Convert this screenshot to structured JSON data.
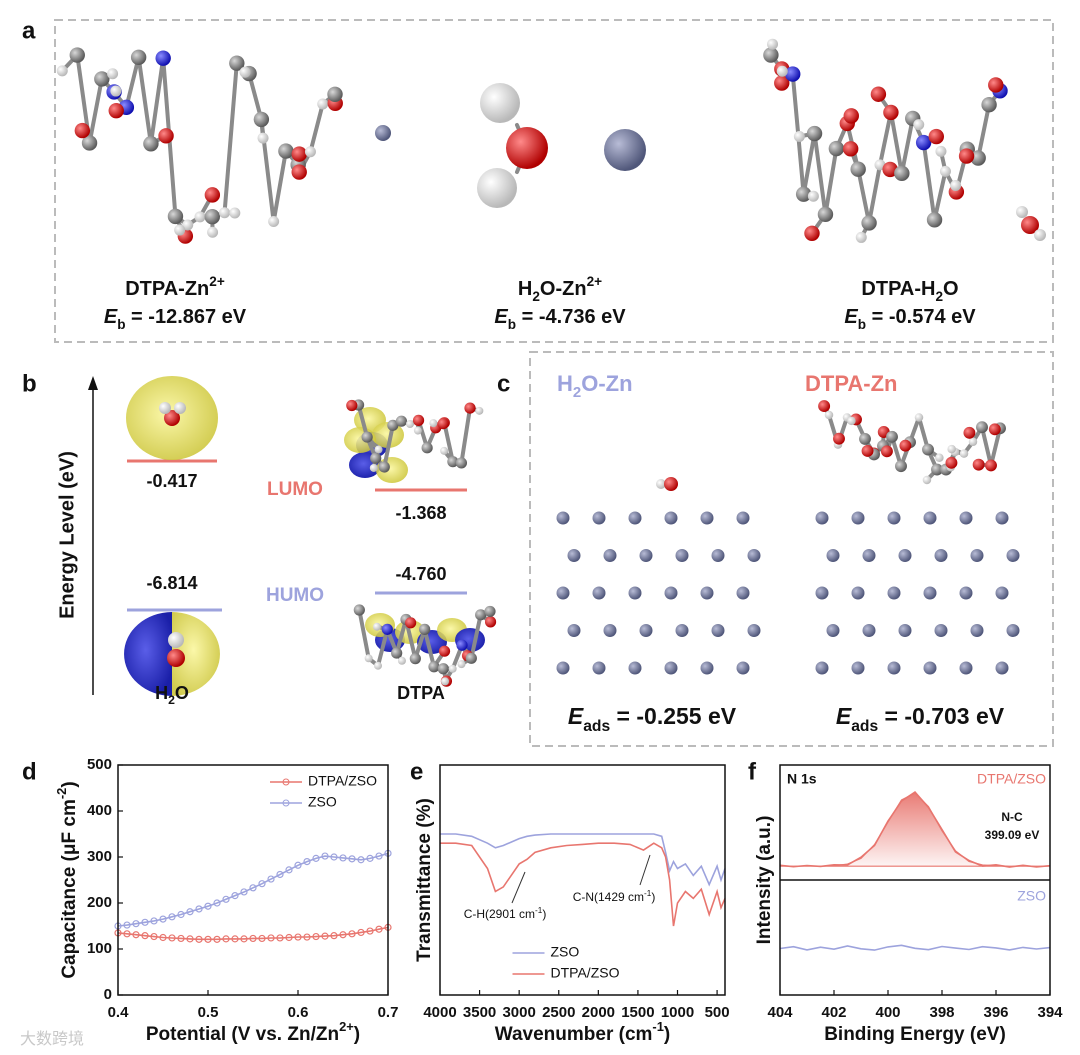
{
  "watermark": "大数跨境",
  "panel_a": {
    "label": "a",
    "items": [
      {
        "name": [
          {
            "text": "DTPA-Zn"
          },
          {
            "text": "2+",
            "sup": true
          }
        ],
        "energy": [
          {
            "text": "E",
            "italic": true
          },
          {
            "text": "b",
            "sub": true
          },
          {
            "text": " = -12.867 eV"
          }
        ]
      },
      {
        "name": [
          {
            "text": "H"
          },
          {
            "text": "2",
            "sub": true
          },
          {
            "text": "O-Zn"
          },
          {
            "text": "2+",
            "sup": true
          }
        ],
        "energy": [
          {
            "text": "E",
            "italic": true
          },
          {
            "text": "b",
            "sub": true
          },
          {
            "text": " = -4.736 eV"
          }
        ]
      },
      {
        "name": [
          {
            "text": "DTPA-H"
          },
          {
            "text": "2",
            "sub": true
          },
          {
            "text": "O"
          }
        ],
        "energy": [
          {
            "text": "E",
            "italic": true
          },
          {
            "text": "b",
            "sub": true
          },
          {
            "text": " = -0.574 eV"
          }
        ]
      }
    ]
  },
  "panel_b": {
    "label": "b",
    "axis_label": "Energy Level (eV)",
    "lumo": "LUMO",
    "humo": "HUMO",
    "molecules": [
      {
        "name": [
          {
            "text": "H"
          },
          {
            "text": "2",
            "sub": true
          },
          {
            "text": "O"
          }
        ],
        "lumo": "-0.417",
        "homo": "-6.814"
      },
      {
        "name": [
          {
            "text": "DTPA"
          }
        ],
        "lumo": "-1.368",
        "homo": "-4.760"
      }
    ]
  },
  "panel_c": {
    "label": "c",
    "items": [
      {
        "name": [
          {
            "text": "H"
          },
          {
            "text": "2",
            "sub": true
          },
          {
            "text": "O-Zn"
          }
        ],
        "color": "#9da3dd",
        "energy": [
          {
            "text": "E",
            "italic": true
          },
          {
            "text": "ads",
            "sub": true
          },
          {
            "text": " = -0.255 eV"
          }
        ]
      },
      {
        "name": [
          {
            "text": "DTPA-Zn"
          }
        ],
        "color": "#e8766f",
        "energy": [
          {
            "text": "E",
            "italic": true
          },
          {
            "text": "ads",
            "sub": true
          },
          {
            "text": " = -0.703 eV"
          }
        ]
      }
    ]
  },
  "chart_data": [
    {
      "type": "line",
      "label": "d",
      "markers": true,
      "legend": "upper right",
      "xlabel": [
        {
          "text": "Potential (V vs. Zn/Zn"
        },
        {
          "text": "2+",
          "sup": true
        },
        {
          "text": ")"
        }
      ],
      "ylabel": [
        {
          "text": "Capacitance (μF cm"
        },
        {
          "text": "-2",
          "sup": true
        },
        {
          "text": ")"
        }
      ],
      "xlim": [
        0.4,
        0.7
      ],
      "xticks": [
        0.4,
        0.5,
        0.6,
        0.7
      ],
      "ylim": [
        0,
        500
      ],
      "yticks": [
        0,
        100,
        200,
        300,
        400,
        500
      ],
      "x": [
        0.4,
        0.41,
        0.42,
        0.43,
        0.44,
        0.45,
        0.46,
        0.47,
        0.48,
        0.49,
        0.5,
        0.51,
        0.52,
        0.53,
        0.54,
        0.55,
        0.56,
        0.57,
        0.58,
        0.59,
        0.6,
        0.61,
        0.62,
        0.63,
        0.64,
        0.65,
        0.66,
        0.67,
        0.68,
        0.69,
        0.7
      ],
      "series": [
        {
          "name": "DTPA/ZSO",
          "color": "#e8766f",
          "values": [
            135,
            133,
            131,
            129,
            127,
            125,
            124,
            123,
            122,
            121,
            121,
            121,
            122,
            122,
            122,
            123,
            123,
            124,
            124,
            125,
            126,
            126,
            127,
            128,
            129,
            131,
            133,
            136,
            139,
            143,
            147
          ]
        },
        {
          "name": "ZSO",
          "color": "#9da3dd",
          "values": [
            150,
            152,
            155,
            158,
            161,
            165,
            170,
            175,
            181,
            187,
            193,
            200,
            208,
            216,
            224,
            233,
            242,
            252,
            262,
            272,
            282,
            290,
            297,
            302,
            300,
            298,
            296,
            294,
            297,
            302,
            308
          ]
        }
      ]
    },
    {
      "type": "line",
      "label": "e",
      "legend": "lower center",
      "xlabel": [
        {
          "text": "Wavenumber (cm"
        },
        {
          "text": "-1",
          "sup": true
        },
        {
          "text": ")"
        }
      ],
      "ylabel": [
        {
          "text": "Transmittance (%)"
        }
      ],
      "xlim": [
        4000,
        400
      ],
      "xticks": [
        4000,
        3500,
        3000,
        2500,
        2000,
        1500,
        1000,
        500
      ],
      "ylim": [
        0,
        100
      ],
      "x": [
        4000,
        3800,
        3600,
        3400,
        3300,
        3200,
        3000,
        2901,
        2800,
        2600,
        2400,
        2200,
        2000,
        1800,
        1600,
        1429,
        1300,
        1200,
        1150,
        1100,
        1050,
        1000,
        900,
        800,
        700,
        600,
        500,
        450,
        400
      ],
      "series": [
        {
          "name": "ZSO",
          "color": "#9da3dd",
          "values": [
            70,
            70,
            69,
            66,
            64,
            65,
            68,
            69,
            69.5,
            70,
            70,
            70,
            70,
            70,
            70,
            70,
            70,
            69,
            62,
            54,
            58,
            55,
            57,
            52,
            56,
            48,
            56,
            50,
            55
          ]
        },
        {
          "name": "DTPA/ZSO",
          "color": "#e8766f",
          "values": [
            66,
            66,
            65,
            55,
            45,
            47,
            57,
            59,
            62,
            64,
            65,
            65.5,
            66,
            66,
            65.5,
            63,
            66,
            64,
            60,
            50,
            30,
            40,
            45,
            42,
            46,
            35,
            45,
            38,
            42
          ]
        }
      ],
      "annotations": [
        [
          {
            "text": "C-H(2901 cm"
          },
          {
            "text": "-1",
            "sup": true
          },
          {
            "text": ")"
          }
        ],
        [
          {
            "text": "C-N(1429 cm"
          },
          {
            "text": "-1",
            "sup": true
          },
          {
            "text": ")"
          }
        ]
      ]
    },
    {
      "type": "line",
      "label": "f",
      "legend": "panels",
      "panel_title": "N 1s",
      "xlabel": [
        {
          "text": "Binding Energy (eV)"
        }
      ],
      "ylabel": [
        {
          "text": "Intensity (a.u.)"
        }
      ],
      "xlim": [
        404,
        394
      ],
      "xticks": [
        404,
        402,
        400,
        398,
        396,
        394
      ],
      "ylim": [
        0,
        100
      ],
      "x": [
        404,
        403.5,
        403,
        402.5,
        402,
        401.5,
        401,
        400.5,
        400,
        399.5,
        399,
        398.5,
        398,
        397.5,
        397,
        396.5,
        396,
        395.5,
        395,
        394.5,
        394
      ],
      "series": [
        {
          "name": "DTPA/ZSO",
          "color": "#e8766f",
          "values": [
            56.4,
            55.8,
            56.3,
            55.9,
            56.6,
            56.5,
            59.9,
            65.0,
            75.6,
            84.3,
            88.2,
            81.5,
            71.9,
            62.2,
            58.5,
            56.1,
            56.6,
            55.6,
            56.4,
            55.7,
            56.2
          ]
        },
        {
          "name": "ZSO",
          "color": "#9da3dd",
          "values": [
            20.2,
            21.0,
            19.6,
            20.8,
            19.9,
            21.3,
            20.1,
            19.5,
            20.9,
            21.6,
            20.3,
            19.7,
            21.1,
            20.4,
            19.8,
            21.0,
            20.5,
            19.6,
            20.7,
            20.0,
            20.6
          ]
        },
        {
          "name": "N-C",
          "color": "#e8766f",
          "fill": true,
          "values": [
            56,
            56,
            56,
            56,
            56.2,
            56.9,
            59.4,
            65.4,
            75.2,
            84.8,
            87.8,
            81.9,
            71.4,
            62.7,
            58.1,
            56.5,
            56.2,
            56,
            56,
            56,
            56
          ]
        }
      ],
      "annotations": [
        [
          {
            "text": "399.09 eV"
          }
        ]
      ]
    }
  ]
}
